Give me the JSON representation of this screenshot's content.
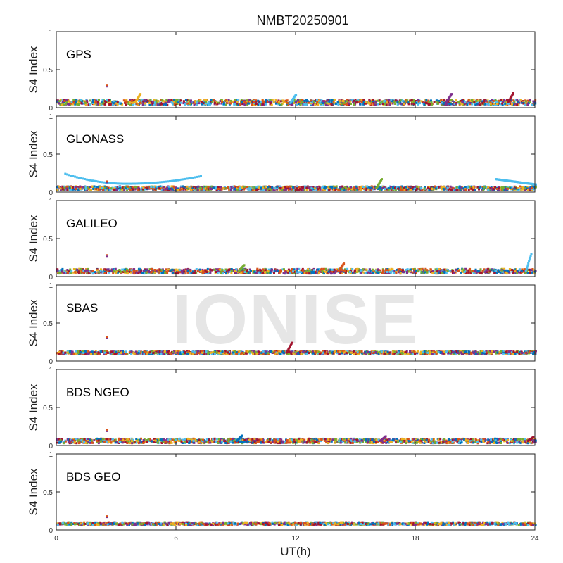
{
  "chart_data": {
    "type": "scatter",
    "title": "NMBT20250901",
    "xlabel": "UT(h)",
    "ylabel": "S4 Index",
    "xlim": [
      0,
      24
    ],
    "ylim": [
      0,
      1
    ],
    "x_ticks": [
      0,
      6,
      12,
      18,
      24
    ],
    "y_tick_labels": [
      "0",
      "0.5",
      "1"
    ],
    "watermark": "IONISE",
    "colors": [
      "#0072BD",
      "#D95319",
      "#EDB120",
      "#7E2F8E",
      "#77AC30",
      "#4DBEEE",
      "#A2142F"
    ],
    "panels": [
      {
        "label": "GPS",
        "base": 0.07,
        "spread": 0.035,
        "features": [
          {
            "x": 2.5,
            "y": 0.29,
            "note": "spike"
          },
          {
            "x": 19.8,
            "y": 0.18
          },
          {
            "x": 22.9,
            "y": 0.19
          },
          {
            "x": 4.2,
            "y": 0.18
          },
          {
            "x": 12,
            "y": 0.17
          }
        ]
      },
      {
        "label": "GLONASS",
        "base": 0.05,
        "spread": 0.025,
        "features": [
          {
            "x": 2.5,
            "y": 0.14,
            "note": "spike"
          },
          {
            "x": 16.3,
            "y": 0.17
          }
        ],
        "arcs": [
          {
            "x0": 0.4,
            "y0": 0.24,
            "xm": 3.5,
            "ym": 0.11,
            "x1": 7.2,
            "y1": 0.21
          },
          {
            "x0": 22.0,
            "y0": 0.17,
            "x1": 24,
            "y1": 0.1
          }
        ]
      },
      {
        "label": "GALILEO",
        "base": 0.07,
        "spread": 0.03,
        "features": [
          {
            "x": 2.5,
            "y": 0.28,
            "note": "spike"
          },
          {
            "x": 23.8,
            "y": 0.3
          },
          {
            "x": 14.4,
            "y": 0.17
          },
          {
            "x": 9.4,
            "y": 0.15
          }
        ]
      },
      {
        "label": "SBAS",
        "base": 0.11,
        "spread": 0.02,
        "features": [
          {
            "x": 2.5,
            "y": 0.31,
            "note": "spike"
          },
          {
            "x": 11.8,
            "y": 0.24
          }
        ]
      },
      {
        "label": "BDS NGEO",
        "base": 0.06,
        "spread": 0.03,
        "features": [
          {
            "x": 2.5,
            "y": 0.2,
            "note": "spike"
          },
          {
            "x": 9.3,
            "y": 0.13
          },
          {
            "x": 16.5,
            "y": 0.12
          },
          {
            "x": 23.9,
            "y": 0.11
          }
        ]
      },
      {
        "label": "BDS GEO",
        "base": 0.08,
        "spread": 0.012,
        "features": [
          {
            "x": 2.5,
            "y": 0.18,
            "note": "spike"
          }
        ]
      }
    ]
  }
}
